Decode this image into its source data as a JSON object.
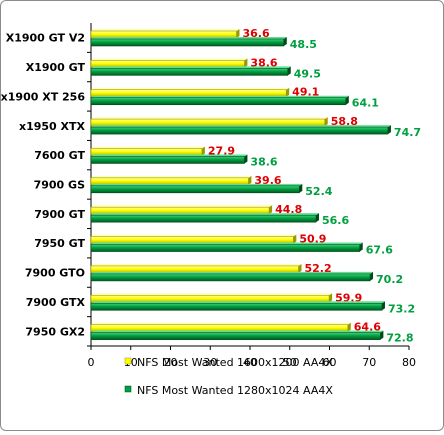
{
  "chart_data": {
    "type": "bar",
    "orientation": "horizontal",
    "title": "",
    "xlabel": "",
    "ylabel": "",
    "categories": [
      "X1900 GT V2",
      "X1900 GT",
      "x1900 XT 256",
      "x1950 XTX",
      "7600 GT",
      "7900 GS",
      "7900 GT",
      "7950 GT",
      "7900 GTO",
      "7900 GTX",
      "7950 GX2"
    ],
    "series": [
      {
        "name": "NFS Most Wanted 1600x1200 AA4X",
        "color": "#ffff00",
        "label_color": "#e00000",
        "values": [
          36.6,
          38.6,
          49.1,
          58.8,
          27.9,
          39.6,
          44.8,
          50.9,
          52.2,
          59.9,
          64.6
        ]
      },
      {
        "name": "NFS Most Wanted 1280x1024 AA4X",
        "color": "#00a040",
        "label_color": "#00a040",
        "values": [
          48.5,
          49.5,
          64.1,
          74.7,
          38.6,
          52.4,
          56.6,
          67.6,
          70.2,
          73.2,
          72.8
        ]
      }
    ],
    "xlim": [
      0,
      80
    ],
    "xticks": [
      "0",
      "10",
      "20",
      "30",
      "40",
      "50",
      "60",
      "70",
      "80"
    ],
    "grid": false,
    "legend_position": "bottom"
  }
}
